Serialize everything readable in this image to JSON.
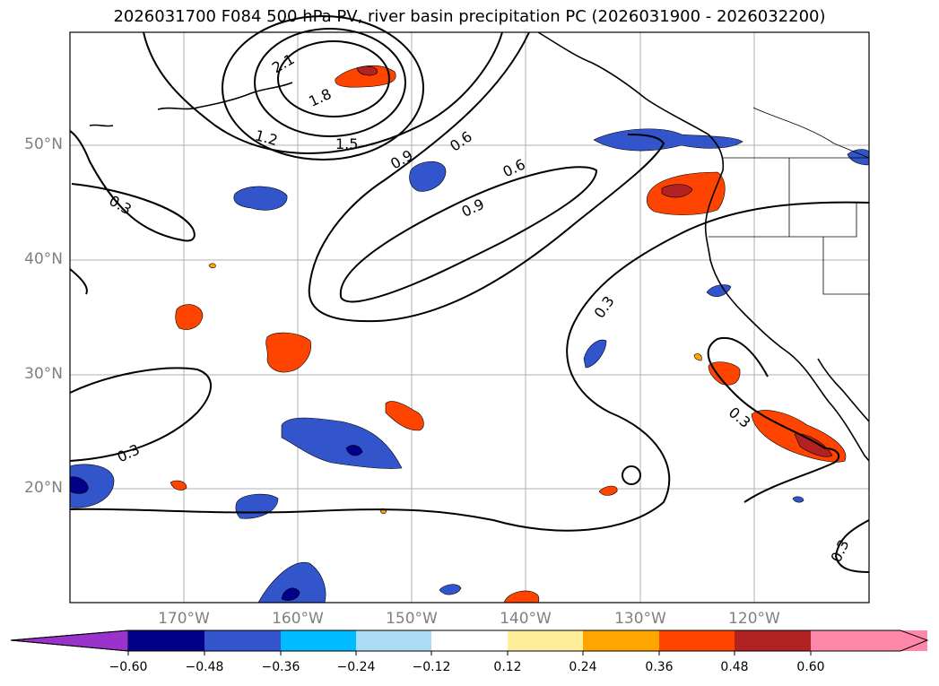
{
  "title": "2026031700 F084 500 hPa PV, river basin precipitation PC (2026031900 - 2026032200)",
  "latitudes": [
    "50°N",
    "40°N",
    "30°N",
    "20°N"
  ],
  "longitudes": [
    "170°W",
    "160°W",
    "150°W",
    "140°W",
    "130°W",
    "120°W"
  ],
  "pv_contour_labels": [
    "2.1",
    "1.8",
    "1.5",
    "1.2",
    "0.9",
    "0.6",
    "0.6",
    "0.9",
    "0.3",
    "0.3",
    "0.3",
    "0.3",
    "0.3"
  ],
  "colorbar": {
    "ticks": [
      "−0.60",
      "−0.48",
      "−0.36",
      "−0.24",
      "−0.12",
      "0.12",
      "0.24",
      "0.36",
      "0.48",
      "0.60"
    ],
    "colors": [
      "#9933cc",
      "#000088",
      "#3355cc",
      "#00bbff",
      "#aaddf5",
      "#ffffff",
      "#ffee99",
      "#ffa500",
      "#ff4400",
      "#b22222",
      "#ff88aa"
    ]
  }
}
